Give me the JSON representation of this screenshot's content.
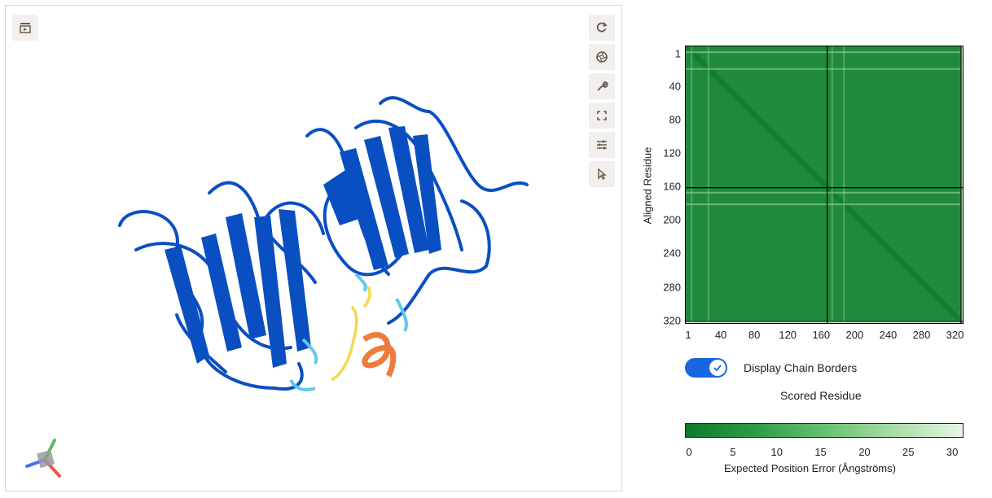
{
  "viewer": {
    "menu_icon": "sequence-menu-icon",
    "toolbar": [
      {
        "name": "reset-view-button",
        "icon": "refresh-icon"
      },
      {
        "name": "screenshot-button",
        "icon": "camera-aperture-icon"
      },
      {
        "name": "tools-button",
        "icon": "wrench-icon"
      },
      {
        "name": "fullscreen-button",
        "icon": "expand-icon"
      },
      {
        "name": "settings-button",
        "icon": "sliders-icon"
      },
      {
        "name": "selection-mode-button",
        "icon": "cursor-icon"
      }
    ],
    "colors": {
      "very_high": "#0a4fc2",
      "confident": "#5fc8ee",
      "low": "#f5d94c",
      "very_low": "#f07a3b"
    }
  },
  "pae": {
    "y_axis_label": "Aligned Residue",
    "x_axis_label": "Scored Residue",
    "y_ticks": [
      "1",
      "40",
      "80",
      "120",
      "160",
      "200",
      "240",
      "280",
      "320"
    ],
    "x_ticks": [
      "1",
      "40",
      "80",
      "120",
      "160",
      "200",
      "240",
      "280",
      "320"
    ],
    "range": [
      1,
      334
    ],
    "chain_borders": [
      171,
      331
    ],
    "toggle_label": "Display Chain Borders",
    "toggle_on": true,
    "colorbar_ticks": [
      "0",
      "5",
      "10",
      "15",
      "20",
      "25",
      "30"
    ],
    "colorbar_label": "Expected Position Error (Ångströms)",
    "colorbar_max": 31.75,
    "colors": {
      "low_error": "#0b7a2a",
      "high_error": "#e6f6e3"
    }
  }
}
